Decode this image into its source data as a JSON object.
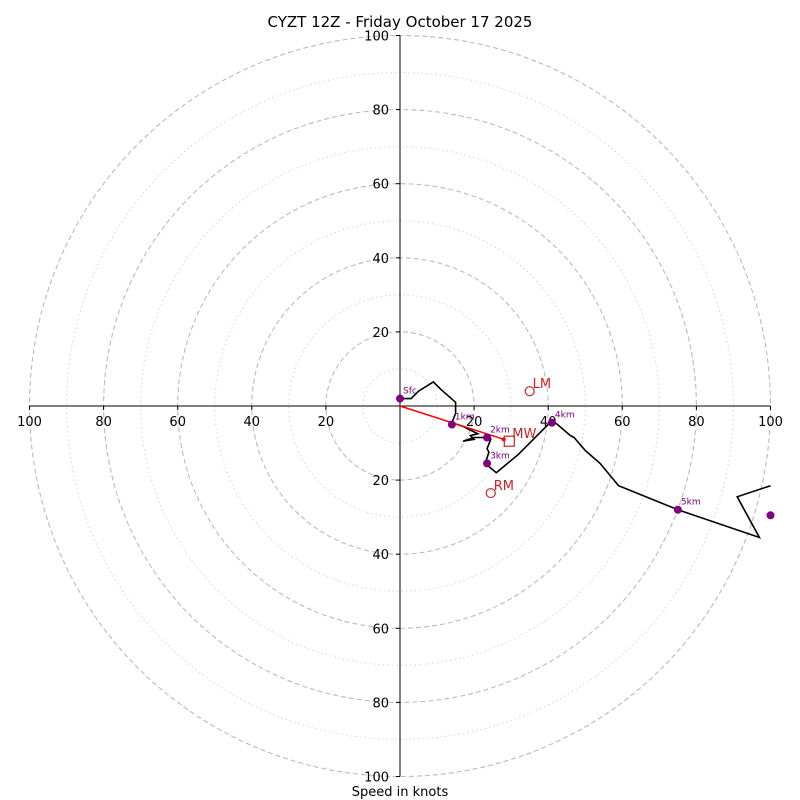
{
  "chart_data": {
    "type": "hodograph",
    "title": "CYZT 12Z - Friday October 17 2025",
    "xlabel": "Speed in knots",
    "range": [
      -100,
      100
    ],
    "major_rings": [
      20,
      40,
      60,
      80,
      100
    ],
    "minor_rings": [
      10,
      30,
      50,
      70,
      90
    ],
    "tick_values": [
      20,
      40,
      60,
      80,
      100
    ],
    "hodograph_line": [
      [
        0,
        2
      ],
      [
        3,
        2
      ],
      [
        5,
        4
      ],
      [
        9,
        6.5
      ],
      [
        11,
        4.5
      ],
      [
        15,
        1
      ],
      [
        15,
        -2
      ],
      [
        14,
        -4.5
      ],
      [
        17,
        -5.5
      ],
      [
        21,
        -7.5
      ],
      [
        19,
        -8
      ],
      [
        20,
        -9
      ],
      [
        17,
        -9.5
      ],
      [
        20,
        -8.5
      ],
      [
        23,
        -8.5
      ],
      [
        24.5,
        -9
      ],
      [
        23.5,
        -11.5
      ],
      [
        24,
        -12.5
      ],
      [
        23,
        -15.5
      ],
      [
        26,
        -18
      ],
      [
        32,
        -13
      ],
      [
        37,
        -8
      ],
      [
        39,
        -6
      ],
      [
        41,
        -4
      ],
      [
        42.5,
        -5
      ],
      [
        46,
        -8
      ],
      [
        47,
        -8.5
      ],
      [
        50,
        -12
      ],
      [
        54,
        -15.5
      ],
      [
        59,
        -21.5
      ],
      [
        75,
        -28
      ],
      [
        97,
        -35.5
      ],
      [
        91,
        -24.5
      ],
      [
        100,
        -21.5
      ]
    ],
    "height_markers": [
      {
        "label": "Sfc",
        "u": 0,
        "v": 2
      },
      {
        "label": "1km",
        "u": 14,
        "v": -5
      },
      {
        "label": "2km",
        "u": 23.5,
        "v": -8.5
      },
      {
        "label": "3km",
        "u": 23.5,
        "v": -15.5
      },
      {
        "label": "4km",
        "u": 41,
        "v": -4.5
      },
      {
        "label": "5km",
        "u": 75,
        "v": -28
      },
      {
        "label": "",
        "u": 100,
        "v": -29.5
      }
    ],
    "storm_motion": {
      "LM": {
        "label": "LM",
        "u": 35,
        "v": 4
      },
      "RM": {
        "label": "RM",
        "u": 24.5,
        "v": -23.5
      },
      "MW": {
        "label": "MW",
        "u": 29.5,
        "v": -9.5
      }
    },
    "shear_vector": {
      "from": [
        0,
        0
      ],
      "to": [
        28,
        -9
      ]
    },
    "colors": {
      "ring": "#bbbbbb",
      "axis": "#000000",
      "hodograph": "#000000",
      "marker": "#800080",
      "storm": "#cc2222",
      "shear": "#ff0000"
    }
  }
}
